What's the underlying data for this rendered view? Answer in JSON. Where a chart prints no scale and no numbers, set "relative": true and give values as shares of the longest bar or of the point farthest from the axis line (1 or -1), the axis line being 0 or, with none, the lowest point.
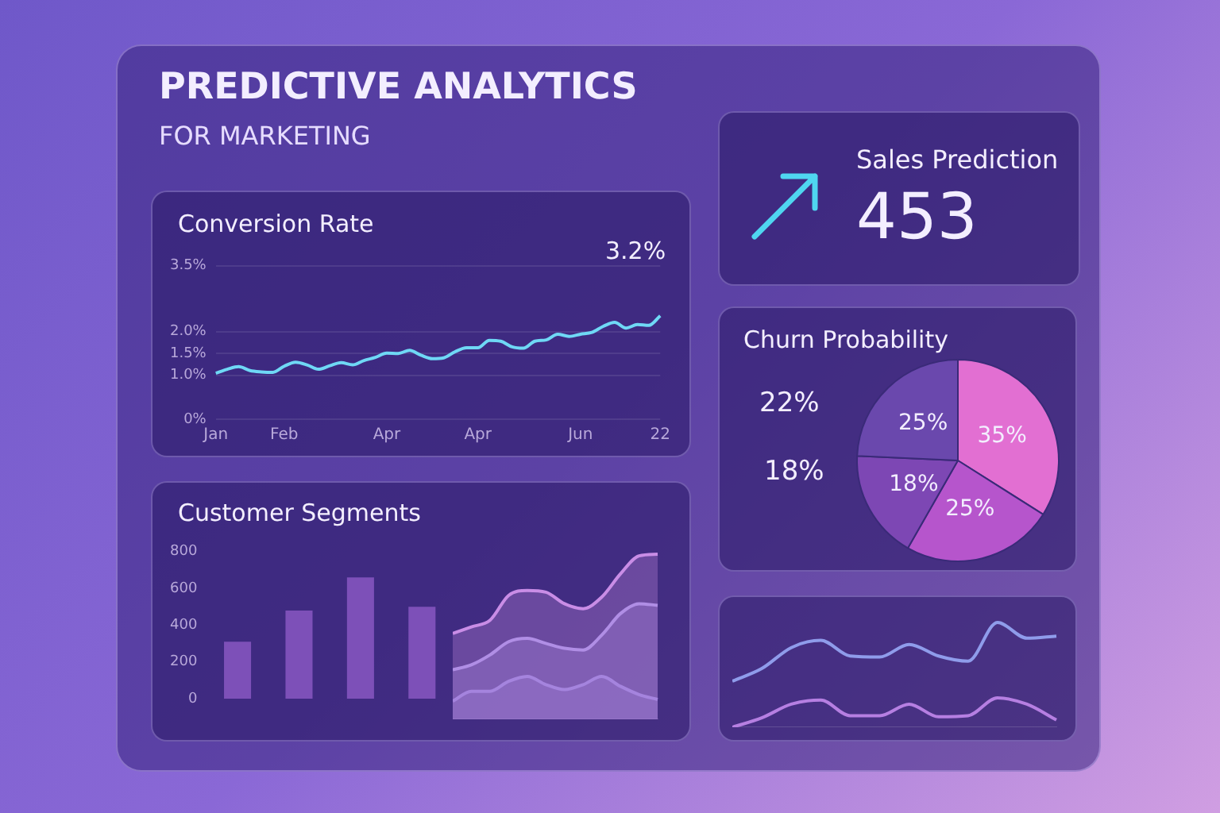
{
  "chart_data": [
    {
      "type": "other",
      "title": "PREDICTIVE ANALYTICS",
      "subtitle": "FOR MARKETING"
    },
    {
      "type": "other",
      "title": "Sales Prediction",
      "annotations": [
        "453"
      ]
    },
    {
      "type": "line",
      "title": "Conversion Rate",
      "categories": [
        "Jan",
        null,
        null,
        null,
        null,
        null,
        "Feb",
        null,
        null,
        null,
        null,
        null,
        null,
        null,
        null,
        "Apr",
        null,
        null,
        null,
        null,
        null,
        null,
        null,
        "Apr",
        null,
        null,
        null,
        null,
        null,
        null,
        null,
        null,
        "Jun",
        null,
        null,
        null,
        null,
        null,
        null,
        "22"
      ],
      "series": [
        {
          "color": "#6fd8f5",
          "values": [
            1.05,
            1.14,
            1.2,
            1.11,
            1.08,
            1.07,
            1.21,
            1.3,
            1.24,
            1.14,
            1.22,
            1.29,
            1.24,
            1.34,
            1.41,
            1.51,
            1.5,
            1.57,
            1.46,
            1.38,
            1.4,
            1.54,
            1.63,
            1.63,
            1.8,
            1.78,
            1.65,
            1.62,
            1.78,
            1.81,
            1.94,
            1.89,
            1.94,
            1.98,
            2.12,
            2.21,
            2.08,
            2.16,
            2.14,
            2.36
          ]
        }
      ],
      "ylim": [
        0,
        3.5
      ],
      "yticks": [
        {
          "value": 0,
          "label": "0%"
        },
        {
          "value": 1,
          "label": "1.0%"
        },
        {
          "value": 1.5,
          "label": "1.5%"
        },
        {
          "value": 2,
          "label": "2.0%"
        },
        {
          "value": 3.5,
          "label": "3.5%"
        }
      ],
      "grid": "y",
      "annotations": [
        "3.2%"
      ]
    },
    {
      "type": "pie",
      "title": "Churn Probability",
      "categories": [
        null,
        null,
        null,
        null
      ],
      "values": [
        35,
        25,
        18,
        25
      ],
      "colors": [
        "#e26fd2",
        "#b655cc",
        "#7d47b4",
        "#6a48ad"
      ],
      "value_labels": [
        "35%",
        "25%",
        "18%",
        "25%"
      ],
      "annotations": [
        "22%",
        "18%"
      ]
    },
    {
      "type": "bar",
      "title": "Customer Segments",
      "categories": [
        null,
        null,
        null,
        null
      ],
      "series": [
        {
          "color": "#7d50b8",
          "values": [
            310,
            480,
            660,
            500
          ]
        }
      ],
      "ylim": [
        0,
        800
      ],
      "yticks": [
        0,
        200,
        400,
        600,
        800
      ]
    },
    {
      "type": "area",
      "relative": true,
      "categories": [
        null,
        null,
        null,
        null,
        null,
        null,
        null,
        null,
        null,
        null,
        null,
        null
      ],
      "series": [
        {
          "color": "#c98de6",
          "values": [
            0.52,
            0.56,
            0.6,
            0.75,
            0.78,
            0.77,
            0.7,
            0.67,
            0.74,
            0.88,
            0.99,
            1
          ]
        },
        {
          "color": "#a58ee6",
          "values": [
            0.3,
            0.33,
            0.39,
            0.47,
            0.49,
            0.46,
            0.43,
            0.42,
            0.51,
            0.64,
            0.7,
            0.69
          ]
        },
        {
          "color": "#8e7ad8",
          "values": [
            0.11,
            0.17,
            0.17,
            0.23,
            0.26,
            0.21,
            0.18,
            0.21,
            0.26,
            0.2,
            0.15,
            0.12
          ]
        }
      ]
    },
    {
      "type": "line",
      "relative": true,
      "categories": [
        null,
        null,
        null,
        null,
        null,
        null,
        null,
        null,
        null,
        null,
        null,
        null
      ],
      "series": [
        {
          "color": "#8f9ceb",
          "values": [
            0.44,
            0.56,
            0.76,
            0.83,
            0.68,
            0.67,
            0.79,
            0.68,
            0.63,
            1,
            0.85,
            0.87
          ]
        },
        {
          "color": "#b67fe2",
          "values": [
            0,
            0.09,
            0.22,
            0.26,
            0.11,
            0.11,
            0.22,
            0.1,
            0.11,
            0.28,
            0.22,
            0.07
          ]
        }
      ]
    }
  ]
}
